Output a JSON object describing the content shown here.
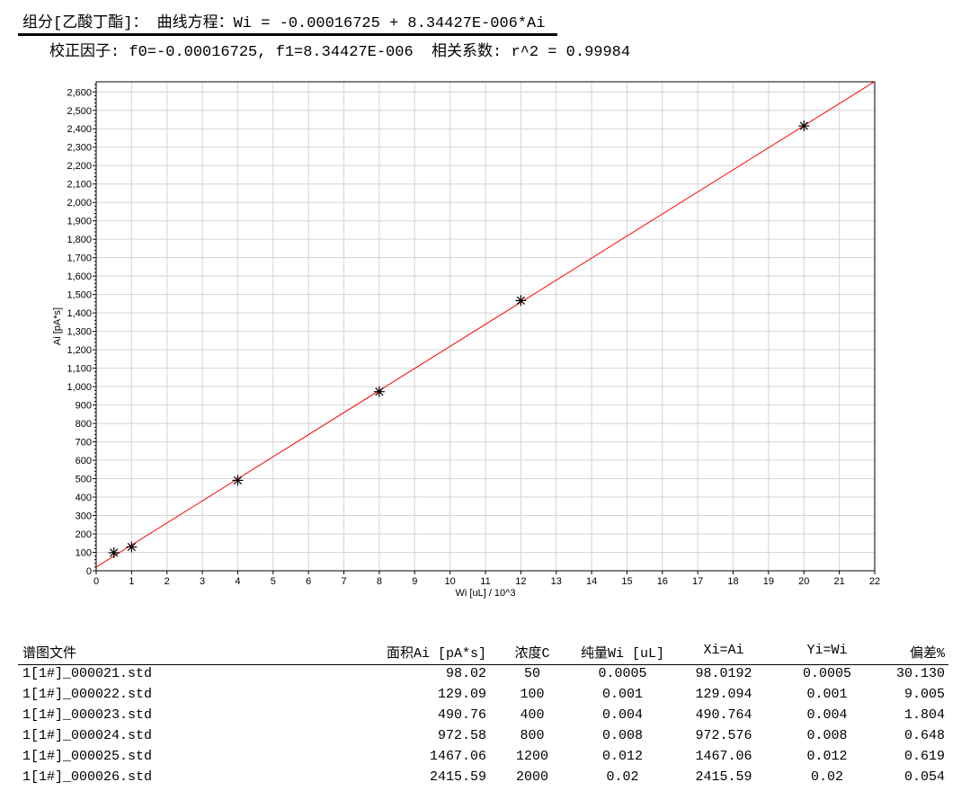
{
  "header": {
    "equation": "组分[乙酸丁酯]： 曲线方程：Wi = -0.00016725 + 8.34427E-006*Ai",
    "factors": "校正因子: f0=-0.00016725, f1=8.34427E-006  相关系数: r^2 = 0.99984"
  },
  "chart_data": {
    "type": "scatter",
    "xlabel": "Wi [uL] / 10^3",
    "ylabel": "Ai [pA*s]",
    "xlim": [
      0,
      22
    ],
    "ylim": [
      0,
      2655
    ],
    "xticks": [
      0,
      1,
      2,
      3,
      4,
      5,
      6,
      7,
      8,
      9,
      10,
      11,
      12,
      13,
      14,
      15,
      16,
      17,
      18,
      19,
      20,
      21,
      22
    ],
    "yticks": [
      "0",
      "100",
      "200",
      "300",
      "400",
      "500",
      "600",
      "700",
      "800",
      "900",
      "1,000",
      "1,100",
      "1,200",
      "1,300",
      "1,400",
      "1,500",
      "1,600",
      "1,700",
      "1,800",
      "1,900",
      "2,000",
      "2,100",
      "2,200",
      "2,300",
      "2,400",
      "2,500",
      "2,600"
    ],
    "grid": true,
    "points": {
      "x": [
        0.5,
        1,
        4,
        8,
        12,
        20
      ],
      "y": [
        98.02,
        129.09,
        490.76,
        972.58,
        1467.06,
        2415.59
      ],
      "marker": "asterisk",
      "color": "#000000"
    },
    "fit_line": {
      "x": [
        0,
        22
      ],
      "y": [
        20.04,
        2656.5
      ],
      "color": "#ff0000"
    }
  },
  "table": {
    "headers": [
      "谱图文件",
      "面积Ai [pA*s]",
      "浓度C",
      "纯量Wi [uL]",
      "Xi=Ai",
      "Yi=Wi",
      "偏差%"
    ],
    "rows": [
      [
        "1[1#]_000021.std",
        "98.02",
        "50",
        "0.0005",
        "98.0192",
        "0.0005",
        "30.130"
      ],
      [
        "1[1#]_000022.std",
        "129.09",
        "100",
        "0.001",
        "129.094",
        "0.001",
        "9.005"
      ],
      [
        "1[1#]_000023.std",
        "490.76",
        "400",
        "0.004",
        "490.764",
        "0.004",
        "1.804"
      ],
      [
        "1[1#]_000024.std",
        "972.58",
        "800",
        "0.008",
        "972.576",
        "0.008",
        "0.648"
      ],
      [
        "1[1#]_000025.std",
        "1467.06",
        "1200",
        "0.012",
        "1467.06",
        "0.012",
        "0.619"
      ],
      [
        "1[1#]_000026.std",
        "2415.59",
        "2000",
        "0.02",
        "2415.59",
        "0.02",
        "0.054"
      ]
    ]
  }
}
